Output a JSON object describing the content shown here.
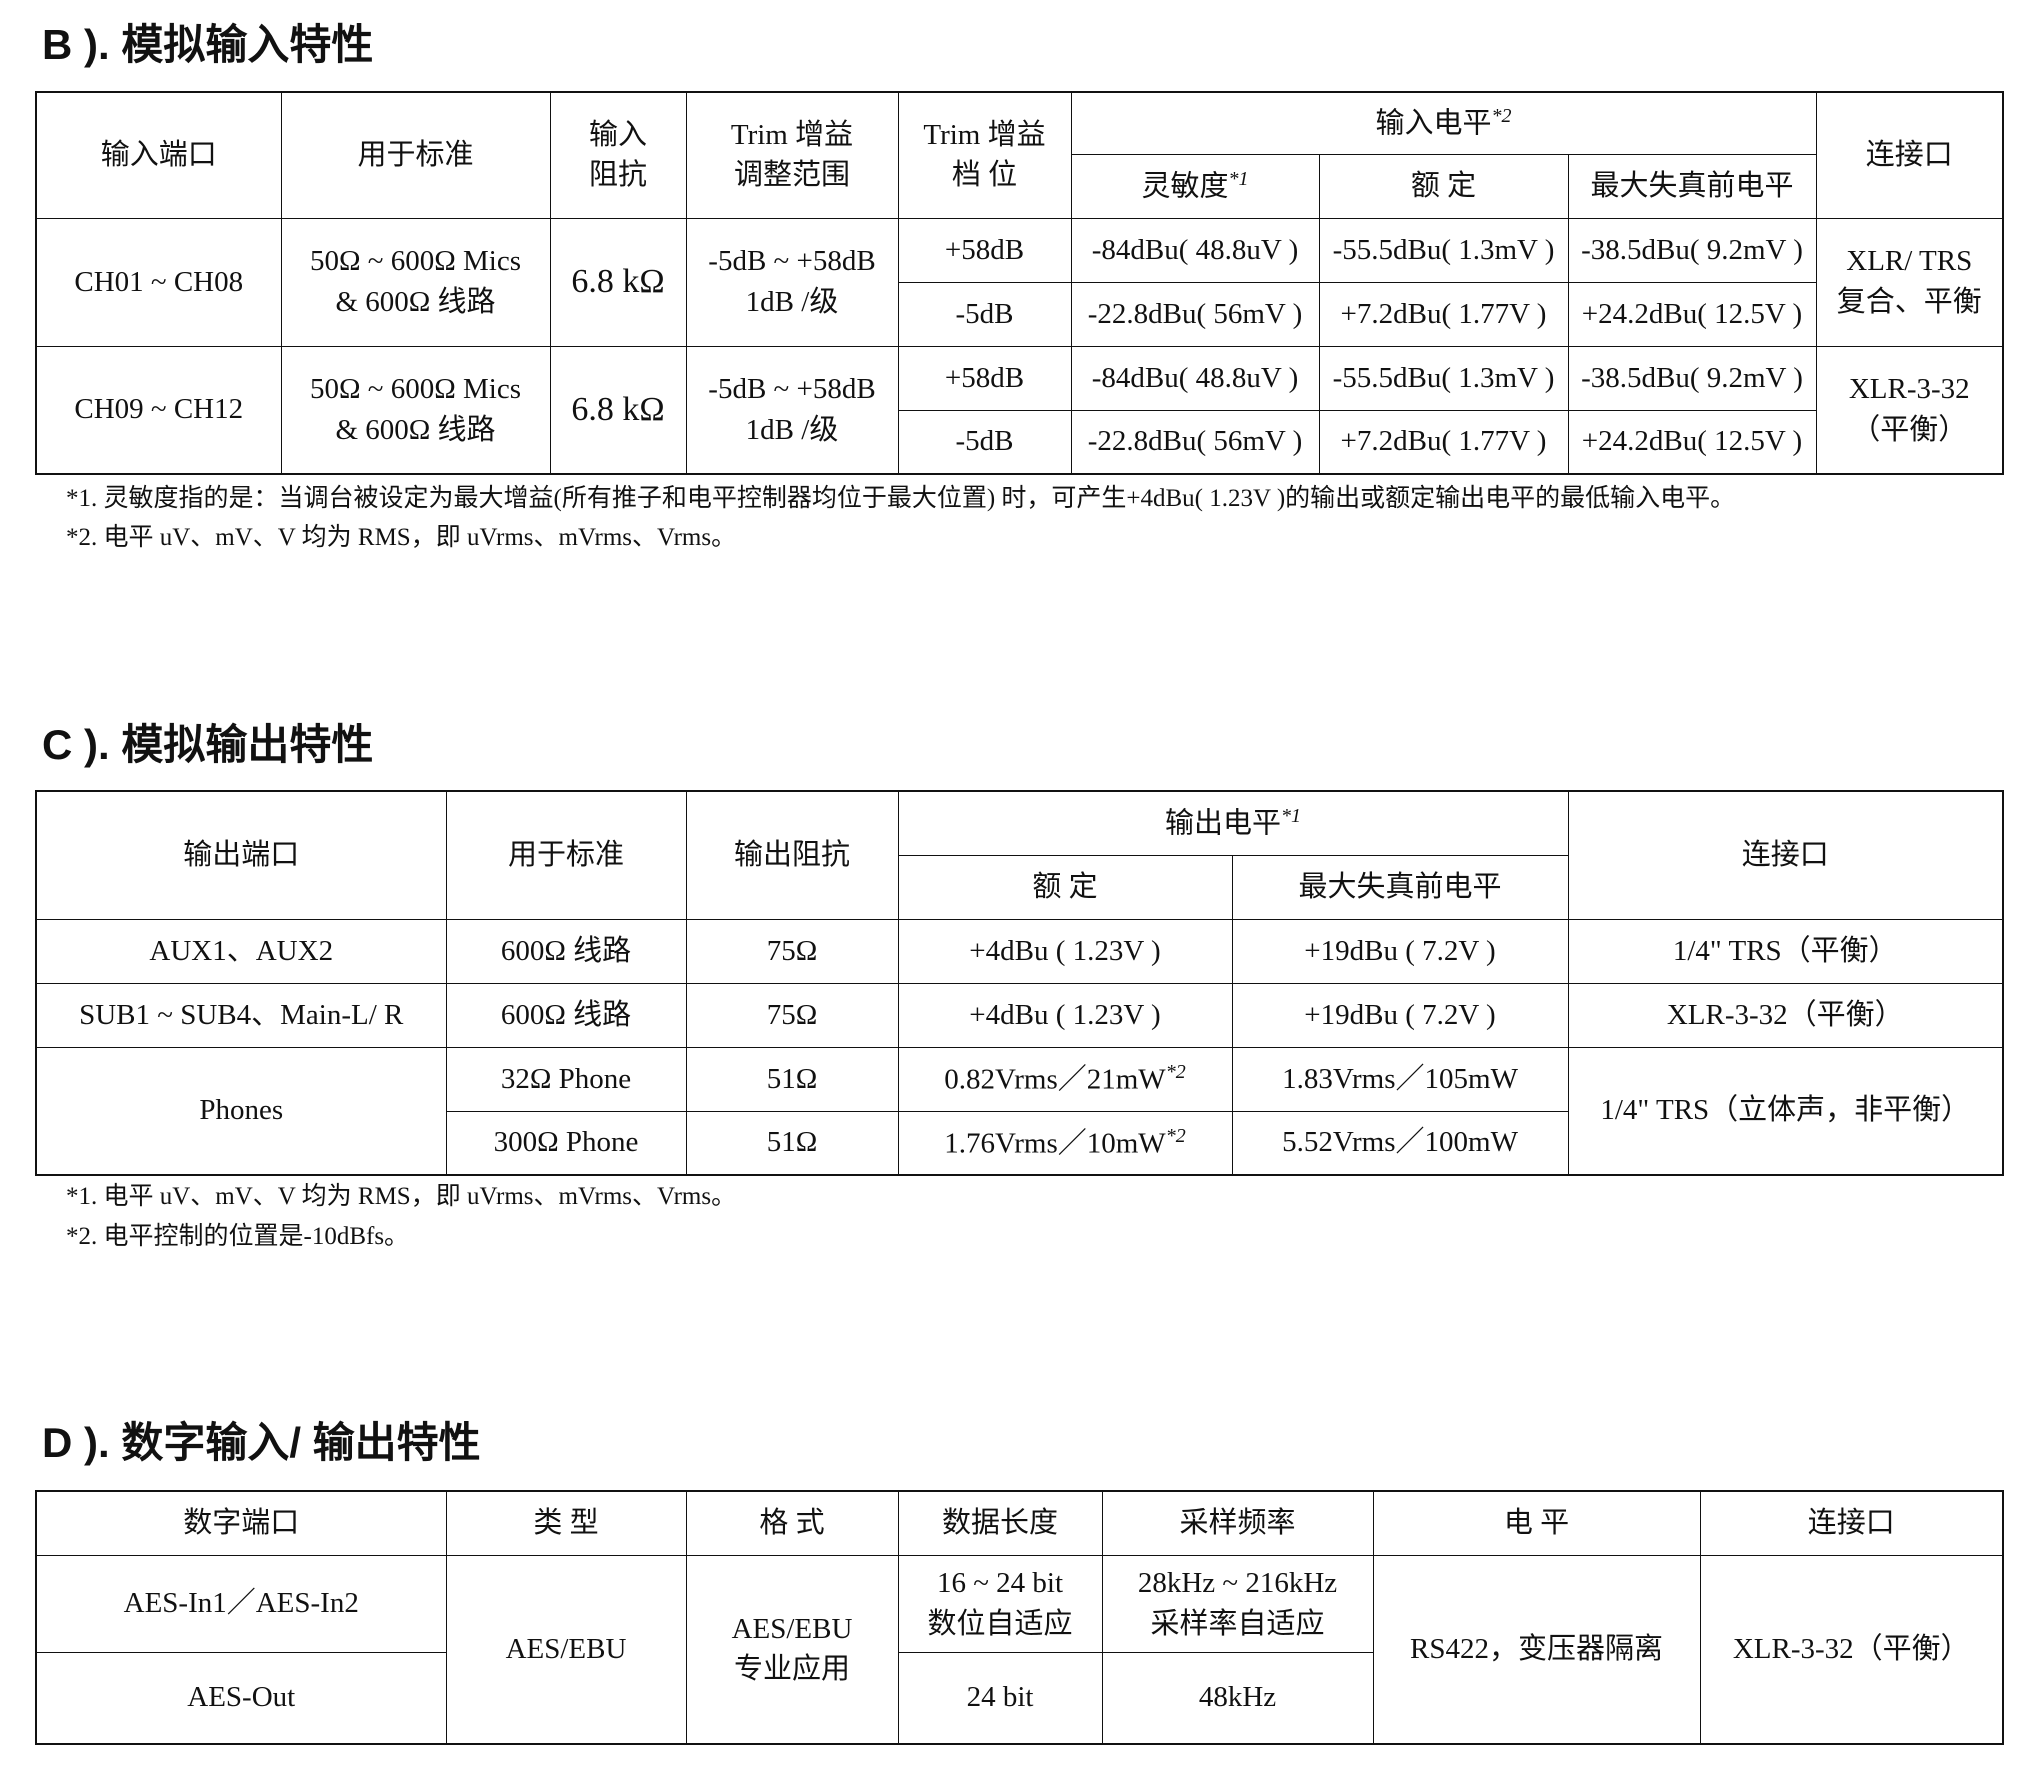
{
  "sectionB": {
    "title": "B ). 模拟输入特性",
    "headers": {
      "port": "输入端口",
      "standard": "用于标准",
      "impedance_1": "输入",
      "impedance_2": "阻抗",
      "trim_range_1": "Trim 增益",
      "trim_range_2": "调整范围",
      "trim_step_1": "Trim 增益",
      "trim_step_2": "档 位",
      "input_level": "输入电平",
      "input_level_mark": "*2",
      "sensitivity": "灵敏度",
      "sensitivity_mark": "*1",
      "nominal": "额 定",
      "max": "最大失真前电平",
      "connector": "连接口"
    },
    "rows": [
      {
        "port": "CH01 ~ CH08",
        "standard_1": "50Ω ~ 600Ω Mics",
        "standard_2": "& 600Ω 线路",
        "impedance": "6.8 kΩ",
        "range_1": "-5dB ~ +58dB",
        "range_2": "1dB /级",
        "connector_1": "XLR/ TRS",
        "connector_2": "复合、平衡",
        "levels": [
          {
            "gain": "+58dB",
            "sensitivity": "-84dBu( 48.8uV )",
            "nominal": "-55.5dBu( 1.3mV )",
            "max": "-38.5dBu( 9.2mV )"
          },
          {
            "gain": "-5dB",
            "sensitivity": "-22.8dBu( 56mV )",
            "nominal": "+7.2dBu( 1.77V )",
            "max": "+24.2dBu( 12.5V )"
          }
        ]
      },
      {
        "port": "CH09 ~ CH12",
        "standard_1": "50Ω ~ 600Ω Mics",
        "standard_2": "& 600Ω 线路",
        "impedance": "6.8 kΩ",
        "range_1": "-5dB ~ +58dB",
        "range_2": "1dB /级",
        "connector_1": "XLR-3-32",
        "connector_2": "（平衡）",
        "levels": [
          {
            "gain": "+58dB",
            "sensitivity": "-84dBu( 48.8uV )",
            "nominal": "-55.5dBu( 1.3mV )",
            "max": "-38.5dBu( 9.2mV )"
          },
          {
            "gain": "-5dB",
            "sensitivity": "-22.8dBu( 56mV )",
            "nominal": "+7.2dBu( 1.77V )",
            "max": "+24.2dBu( 12.5V )"
          }
        ]
      }
    ],
    "notes": [
      "*1. 灵敏度指的是：当调台被设定为最大增益(所有推子和电平控制器均位于最大位置) 时，可产生+4dBu( 1.23V )的输出或额定输出电平的最低输入电平。",
      "*2. 电平 uV、mV、V 均为 RMS，即 uVrms、mVrms、Vrms。"
    ]
  },
  "sectionC": {
    "title": "C ). 模拟输出特性",
    "headers": {
      "port": "输出端口",
      "standard": "用于标准",
      "impedance": "输出阻抗",
      "output_level": "输出电平",
      "output_level_mark": "*1",
      "nominal": "额 定",
      "max": "最大失真前电平",
      "connector": "连接口"
    },
    "rows": [
      {
        "port": "AUX1、AUX2",
        "standard": "600Ω 线路",
        "impedance": "75Ω",
        "nominal": "+4dBu ( 1.23V )",
        "max": "+19dBu ( 7.2V )",
        "connector": "1/4\" TRS（平衡）"
      },
      {
        "port": "SUB1 ~ SUB4、Main-L/ R",
        "standard": "600Ω 线路",
        "impedance": "75Ω",
        "nominal": "+4dBu ( 1.23V )",
        "max": "+19dBu ( 7.2V )",
        "connector": "XLR-3-32（平衡）"
      }
    ],
    "phones": {
      "port": "Phones",
      "connector": "1/4\" TRS（立体声，非平衡）",
      "rows": [
        {
          "standard": "32Ω Phone",
          "impedance": "51Ω",
          "nominal": "0.82Vrms／21mW",
          "nominal_mark": "*2",
          "max": "1.83Vrms／105mW"
        },
        {
          "standard": "300Ω Phone",
          "impedance": "51Ω",
          "nominal": "1.76Vrms／10mW",
          "nominal_mark": "*2",
          "max": "5.52Vrms／100mW"
        }
      ]
    },
    "notes": [
      "*1. 电平 uV、mV、V 均为 RMS，即 uVrms、mVrms、Vrms。",
      "*2. 电平控制的位置是-10dBfs。"
    ]
  },
  "sectionD": {
    "title": "D ). 数字输入/ 输出特性",
    "headers": {
      "port": "数字端口",
      "type": "类 型",
      "format": "格 式",
      "length": "数据长度",
      "rate": "采样频率",
      "level": "电 平",
      "connector": "连接口"
    },
    "type": "AES/EBU",
    "format_1": "AES/EBU",
    "format_2": "专业应用",
    "level": "RS422，变压器隔离",
    "connector": "XLR-3-32（平衡）",
    "rows": [
      {
        "port": "AES-In1／AES-In2",
        "length_1": "16 ~ 24 bit",
        "length_2": "数位自适应",
        "rate_1": "28kHz ~ 216kHz",
        "rate_2": "采样率自适应"
      },
      {
        "port": "AES-Out",
        "length": "24 bit",
        "rate": "48kHz"
      }
    ]
  }
}
